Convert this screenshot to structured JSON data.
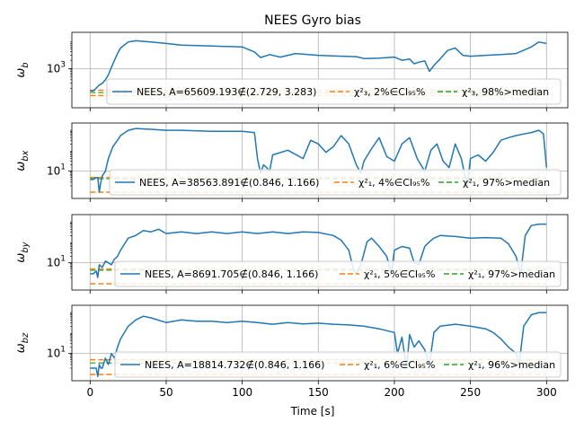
{
  "title": "NEES Gyro bias",
  "xlabel": "Time [s]",
  "colors": {
    "nees": "#1f77b4",
    "ci": "#ff7f0e",
    "median": "#2ca02c",
    "grid": "#b0b0b0"
  },
  "chart_data": [
    {
      "type": "line",
      "ylabel": "ω_b",
      "ylabel_display": "ωb",
      "yscale": "log",
      "ytick_labels": [
        "10^3"
      ],
      "ytick_values": [
        1000
      ],
      "ylim": [
        40,
        20000
      ],
      "xlim": [
        -12,
        314
      ],
      "xticks": [
        0,
        50,
        100,
        150,
        200,
        250,
        300
      ],
      "legend": {
        "nees": "NEES, A=65609.193∉(2.729, 3.283)",
        "ci": "χ²₃, 2%∈CI₉₅%",
        "median": "χ²₃, 98%>median"
      },
      "ci_bounds": [
        110,
        170
      ],
      "median": 140,
      "series": [
        {
          "name": "NEES",
          "x": [
            0,
            2,
            4,
            5,
            6,
            8,
            10,
            12,
            15,
            18,
            20,
            25,
            30,
            40,
            50,
            60,
            80,
            100,
            108,
            112,
            118,
            125,
            135,
            150,
            165,
            175,
            180,
            190,
            200,
            205,
            210,
            213,
            216,
            220,
            223,
            226,
            230,
            235,
            240,
            245,
            250,
            260,
            270,
            280,
            290,
            295,
            300
          ],
          "y": [
            160,
            160,
            200,
            230,
            260,
            300,
            400,
            600,
            1500,
            3500,
            5500,
            9000,
            10000,
            9000,
            8000,
            7000,
            6500,
            6000,
            4000,
            2500,
            3200,
            2600,
            3500,
            3000,
            2800,
            2700,
            2300,
            2400,
            2600,
            2000,
            2200,
            1500,
            1700,
            1900,
            800,
            1300,
            2200,
            4500,
            5500,
            3000,
            2800,
            3000,
            3200,
            3500,
            6000,
            9000,
            8000
          ]
        }
      ]
    },
    {
      "type": "line",
      "ylabel": "ω_bx",
      "ylabel_display": "ωbx",
      "yscale": "log",
      "ytick_labels": [
        "10^1"
      ],
      "ytick_values": [
        10
      ],
      "ylim": [
        0.5,
        2000
      ],
      "xlim": [
        -12,
        314
      ],
      "xticks": [
        0,
        50,
        100,
        150,
        200,
        250,
        300
      ],
      "legend": {
        "nees": "NEES, A=38563.891∉(0.846, 1.166)",
        "ci": "χ²₁, 4%∈CI₉₅%",
        "median": "χ²₁, 97%>median"
      },
      "ci_bounds": [
        1,
        5
      ],
      "median": 4.4,
      "series": [
        {
          "name": "NEES",
          "x": [
            0,
            2,
            4,
            5,
            6,
            7,
            8,
            10,
            12,
            15,
            18,
            20,
            25,
            30,
            40,
            50,
            60,
            80,
            100,
            108,
            110,
            112,
            114,
            116,
            118,
            120,
            130,
            140,
            145,
            150,
            155,
            160,
            165,
            170,
            175,
            178,
            180,
            185,
            190,
            195,
            200,
            205,
            210,
            215,
            220,
            224,
            228,
            232,
            236,
            240,
            244,
            246,
            248,
            250,
            255,
            260,
            265,
            270,
            275,
            280,
            285,
            290,
            295,
            298,
            300
          ],
          "y": [
            4,
            4,
            5,
            5,
            1,
            3,
            6,
            10,
            40,
            150,
            300,
            500,
            900,
            1100,
            1000,
            900,
            900,
            800,
            800,
            700,
            40,
            8,
            20,
            15,
            10,
            60,
            100,
            40,
            300,
            200,
            80,
            150,
            500,
            200,
            20,
            8,
            30,
            120,
            400,
            50,
            30,
            200,
            400,
            40,
            10,
            100,
            200,
            30,
            15,
            200,
            40,
            8,
            2,
            40,
            60,
            30,
            80,
            300,
            400,
            500,
            600,
            700,
            900,
            600,
            15
          ]
        }
      ]
    },
    {
      "type": "line",
      "ylabel": "ω_by",
      "ylabel_display": "ωby",
      "yscale": "log",
      "ytick_labels": [
        "10^1"
      ],
      "ytick_values": [
        10
      ],
      "ylim": [
        0.5,
        2000
      ],
      "xlim": [
        -12,
        314
      ],
      "xticks": [
        0,
        50,
        100,
        150,
        200,
        250,
        300
      ],
      "legend": {
        "nees": "NEES, A=8691.705∉(0.846, 1.166)",
        "ci": "χ²₁, 5%∈CI₉₅%",
        "median": "χ²₁, 97%>median"
      },
      "ci_bounds": [
        1,
        5
      ],
      "median": 4.4,
      "series": [
        {
          "name": "NEES",
          "x": [
            0,
            2,
            4,
            5,
            6,
            8,
            10,
            12,
            14,
            16,
            18,
            20,
            25,
            30,
            35,
            40,
            45,
            50,
            60,
            70,
            80,
            90,
            100,
            110,
            120,
            130,
            140,
            150,
            160,
            165,
            170,
            173,
            175,
            178,
            182,
            185,
            190,
            195,
            198,
            200,
            205,
            210,
            213,
            216,
            220,
            223,
            226,
            230,
            240,
            250,
            260,
            270,
            275,
            280,
            283,
            286,
            290,
            295,
            300
          ],
          "y": [
            3,
            3,
            4,
            2,
            8,
            6,
            12,
            10,
            8,
            15,
            20,
            40,
            150,
            200,
            350,
            300,
            400,
            250,
            300,
            250,
            300,
            250,
            300,
            250,
            300,
            250,
            300,
            280,
            200,
            120,
            40,
            5,
            3,
            8,
            100,
            150,
            60,
            20,
            3,
            40,
            60,
            50,
            10,
            8,
            60,
            100,
            150,
            200,
            180,
            150,
            160,
            150,
            80,
            20,
            3,
            200,
            600,
            700,
            700
          ]
        }
      ]
    },
    {
      "type": "line",
      "ylabel": "ω_bz",
      "ylabel_display": "ωbz",
      "yscale": "log",
      "ytick_labels": [
        "10^1"
      ],
      "ytick_values": [
        10
      ],
      "ylim": [
        0.5,
        2000
      ],
      "xlim": [
        -12,
        314
      ],
      "xticks": [
        0,
        50,
        100,
        150,
        200,
        250,
        300
      ],
      "legend": {
        "nees": "NEES, A=18814.732∉(0.846, 1.166)",
        "ci": "χ²₁, 6%∈CI₉₅%",
        "median": "χ²₁, 96%>median"
      },
      "ci_bounds": [
        1,
        5
      ],
      "median": 3.5,
      "series": [
        {
          "name": "NEES",
          "x": [
            0,
            2,
            4,
            5,
            6,
            7,
            8,
            10,
            12,
            14,
            16,
            18,
            20,
            25,
            30,
            35,
            40,
            50,
            60,
            70,
            80,
            90,
            100,
            110,
            120,
            130,
            140,
            150,
            160,
            170,
            180,
            190,
            200,
            202,
            205,
            208,
            210,
            213,
            216,
            220,
            223,
            226,
            230,
            240,
            250,
            260,
            265,
            270,
            275,
            280,
            282,
            285,
            290,
            295,
            300
          ],
          "y": [
            2,
            2,
            2,
            0.8,
            3,
            2,
            2,
            6,
            3,
            10,
            6,
            20,
            50,
            200,
            400,
            600,
            500,
            300,
            400,
            350,
            350,
            300,
            350,
            300,
            250,
            300,
            260,
            280,
            250,
            230,
            200,
            150,
            100,
            10,
            60,
            2,
            80,
            20,
            40,
            15,
            3,
            100,
            200,
            250,
            200,
            150,
            100,
            50,
            20,
            10,
            3,
            200,
            700,
            900,
            900
          ]
        }
      ]
    }
  ]
}
